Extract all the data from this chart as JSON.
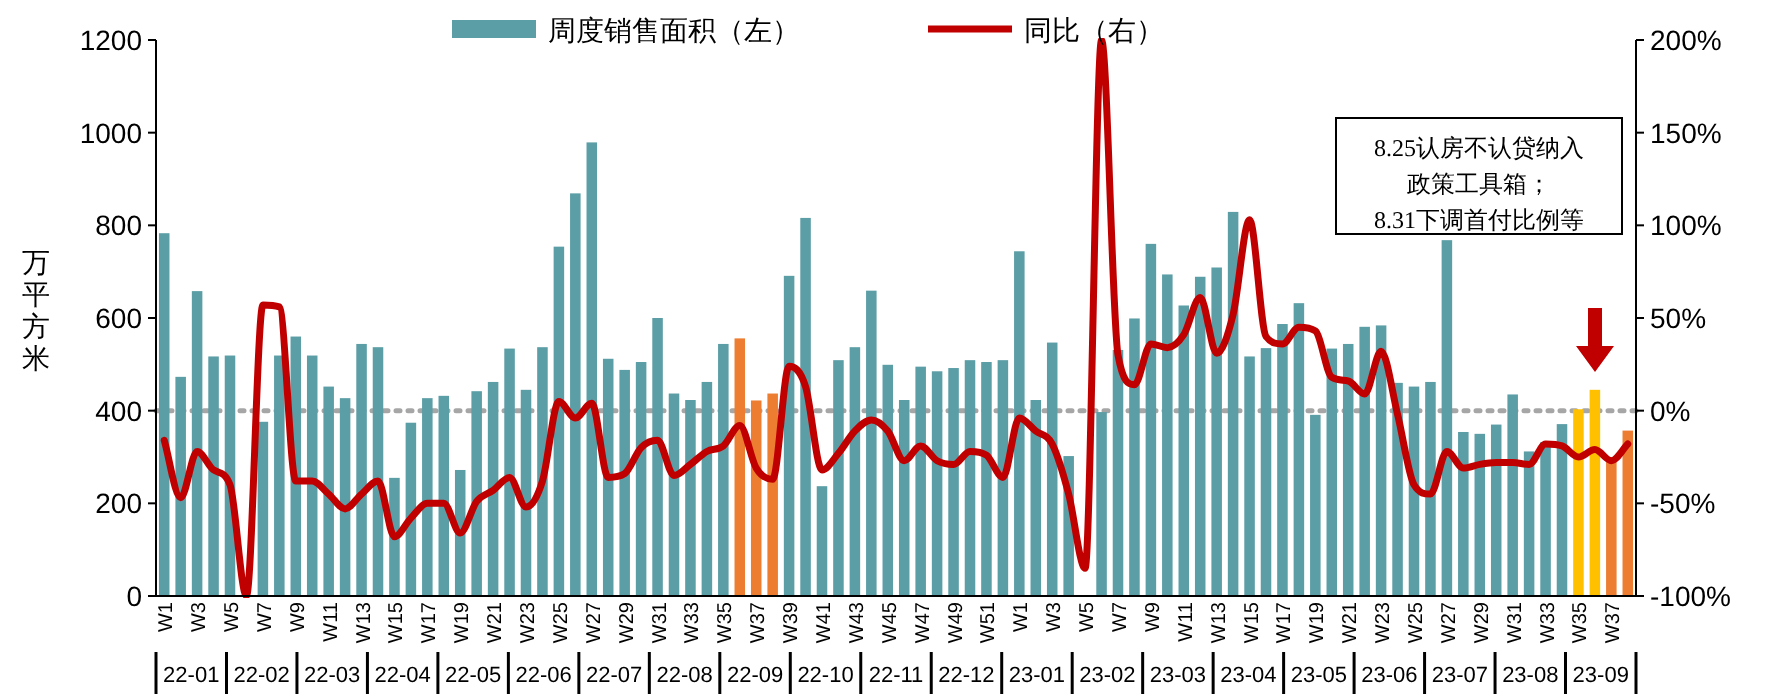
{
  "chart_data": {
    "type": "bar",
    "legend": "top",
    "ylabel": "万平方米",
    "ylim": [
      0,
      1200
    ],
    "yticks": [
      0,
      200,
      400,
      600,
      800,
      1000,
      1200
    ],
    "y2lim": [
      -100,
      200
    ],
    "y2ticks": [
      {
        "value": -100,
        "label": "-100%"
      },
      {
        "value": -50,
        "label": "-50%"
      },
      {
        "value": 0,
        "label": "0%"
      },
      {
        "value": 50,
        "label": "50%"
      },
      {
        "value": 100,
        "label": "100%"
      },
      {
        "value": 150,
        "label": "150%"
      },
      {
        "value": 200,
        "label": "200%"
      }
    ],
    "categories": [
      "W1",
      null,
      "W3",
      null,
      "W5",
      null,
      "W7",
      null,
      "W9",
      null,
      "W11",
      null,
      "W13",
      null,
      "W15",
      null,
      "W17",
      null,
      "W19",
      null,
      "W21",
      null,
      "W23",
      null,
      "W25",
      null,
      "W27",
      null,
      "W29",
      null,
      "W31",
      null,
      "W33",
      null,
      "W35",
      null,
      "W37",
      null,
      "W39",
      null,
      "W41",
      null,
      "W43",
      null,
      "W45",
      null,
      "W47",
      null,
      "W49",
      null,
      "W51",
      null,
      "W1",
      null,
      "W3",
      null,
      "W5",
      null,
      "W7",
      null,
      "W9",
      null,
      "W11",
      null,
      "W13",
      null,
      "W15",
      null,
      "W17",
      null,
      "W19",
      null,
      "W21",
      null,
      "W23",
      null,
      "W25",
      null,
      "W27",
      null,
      "W29",
      null,
      "W31",
      null,
      "W33",
      null,
      "W35",
      null,
      "W37",
      null
    ],
    "series": [
      {
        "name": "周度销售面积（左）",
        "values": [
          783,
          473,
          658,
          517,
          519,
          null,
          376,
          519,
          560,
          519,
          452,
          427,
          544,
          537,
          255,
          374,
          427,
          432,
          272,
          442,
          462,
          534,
          445,
          537,
          754,
          869,
          979,
          512,
          488,
          505,
          600,
          437,
          423,
          462,
          544,
          556,
          422,
          437,
          691,
          816,
          237,
          509,
          537,
          659,
          499,
          423,
          495,
          485,
          492,
          509,
          505,
          509,
          744,
          423,
          547,
          302,
          null,
          397,
          531,
          599,
          760,
          694,
          627,
          689,
          709,
          829,
          517,
          535,
          587,
          632,
          391,
          534,
          544,
          581,
          584,
          460,
          452,
          462,
          768,
          354,
          350,
          370,
          435,
          312,
          332,
          371,
          403,
          445,
          300,
          357
        ],
        "colors": [
          "#5b9ea6",
          "#5b9ea6",
          "#5b9ea6",
          "#5b9ea6",
          "#5b9ea6",
          null,
          "#5b9ea6",
          "#5b9ea6",
          "#5b9ea6",
          "#5b9ea6",
          "#5b9ea6",
          "#5b9ea6",
          "#5b9ea6",
          "#5b9ea6",
          "#5b9ea6",
          "#5b9ea6",
          "#5b9ea6",
          "#5b9ea6",
          "#5b9ea6",
          "#5b9ea6",
          "#5b9ea6",
          "#5b9ea6",
          "#5b9ea6",
          "#5b9ea6",
          "#5b9ea6",
          "#5b9ea6",
          "#5b9ea6",
          "#5b9ea6",
          "#5b9ea6",
          "#5b9ea6",
          "#5b9ea6",
          "#5b9ea6",
          "#5b9ea6",
          "#5b9ea6",
          "#5b9ea6",
          "#ed7d31",
          "#ed7d31",
          "#ed7d31",
          "#5b9ea6",
          "#5b9ea6",
          "#5b9ea6",
          "#5b9ea6",
          "#5b9ea6",
          "#5b9ea6",
          "#5b9ea6",
          "#5b9ea6",
          "#5b9ea6",
          "#5b9ea6",
          "#5b9ea6",
          "#5b9ea6",
          "#5b9ea6",
          "#5b9ea6",
          "#5b9ea6",
          "#5b9ea6",
          "#5b9ea6",
          "#5b9ea6",
          null,
          "#5b9ea6",
          "#5b9ea6",
          "#5b9ea6",
          "#5b9ea6",
          "#5b9ea6",
          "#5b9ea6",
          "#5b9ea6",
          "#5b9ea6",
          "#5b9ea6",
          "#5b9ea6",
          "#5b9ea6",
          "#5b9ea6",
          "#5b9ea6",
          "#5b9ea6",
          "#5b9ea6",
          "#5b9ea6",
          "#5b9ea6",
          "#5b9ea6",
          "#5b9ea6",
          "#5b9ea6",
          "#5b9ea6",
          "#5b9ea6",
          "#5b9ea6",
          "#5b9ea6",
          "#5b9ea6",
          "#5b9ea6",
          "#5b9ea6",
          "#5b9ea6",
          "#5b9ea6",
          "#ffc000",
          "#ffc000",
          "#ed7d31",
          "#ed7d31"
        ]
      },
      {
        "name": "同比（右）",
        "type": "line",
        "axis": "y2",
        "color": "#c00000",
        "values": [
          -16,
          -47,
          -22,
          -32,
          -40,
          -100,
          57,
          56,
          -38,
          -38,
          -45,
          -53,
          -45,
          -38,
          -68,
          -58,
          -50,
          -50,
          -66,
          -49,
          -43,
          -36,
          -52,
          -38,
          5,
          -4,
          4,
          -36,
          -34,
          -20,
          -16,
          -35,
          -29,
          -22,
          -19,
          -8,
          -31,
          -37,
          24,
          13,
          -32,
          -23,
          -11,
          -5,
          -11,
          -27,
          -19,
          -27,
          -29,
          -22,
          -24,
          -36,
          -4,
          -11,
          -18,
          -45,
          -85,
          200,
          30,
          14,
          36,
          34,
          41,
          61,
          31,
          52,
          103,
          40,
          36,
          45,
          43,
          18,
          16,
          9,
          32,
          -2,
          -40,
          -45,
          -22,
          -31,
          -29,
          -28,
          -28,
          -29,
          -18,
          -19,
          -25,
          -21,
          -27,
          -18
        ]
      }
    ],
    "ref_lines": [
      {
        "axis": "y2",
        "value": 0,
        "color": "#a6a6a6",
        "line_style": "dotted"
      }
    ],
    "annotations": [
      "8.25认房不认贷纳入政策工具箱；8.31下调首付比例等",
      "22-01",
      "22-02",
      "22-03",
      "22-04",
      "22-05",
      "22-06",
      "22-07",
      "22-08",
      "22-09",
      "22-10",
      "22-11",
      "22-12",
      "23-01",
      "23-02",
      "23-03",
      "23-04",
      "23-05",
      "23-06",
      "23-07",
      "23-08",
      "23-09"
    ]
  }
}
